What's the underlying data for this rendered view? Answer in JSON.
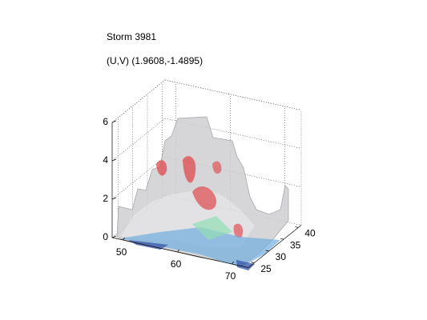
{
  "chart_data": {
    "type": "surface3d",
    "title": "Storm 3981",
    "subtitle": "(U,V) (1.9608,-1.4895)",
    "xlim": [
      48,
      73
    ],
    "xticks": [
      50,
      60,
      70
    ],
    "ylim": [
      23,
      41
    ],
    "yticks": [
      25,
      30,
      35,
      40
    ],
    "zlim": [
      0,
      6
    ],
    "zticks": [
      0,
      2,
      4,
      6
    ],
    "grid": true
  }
}
